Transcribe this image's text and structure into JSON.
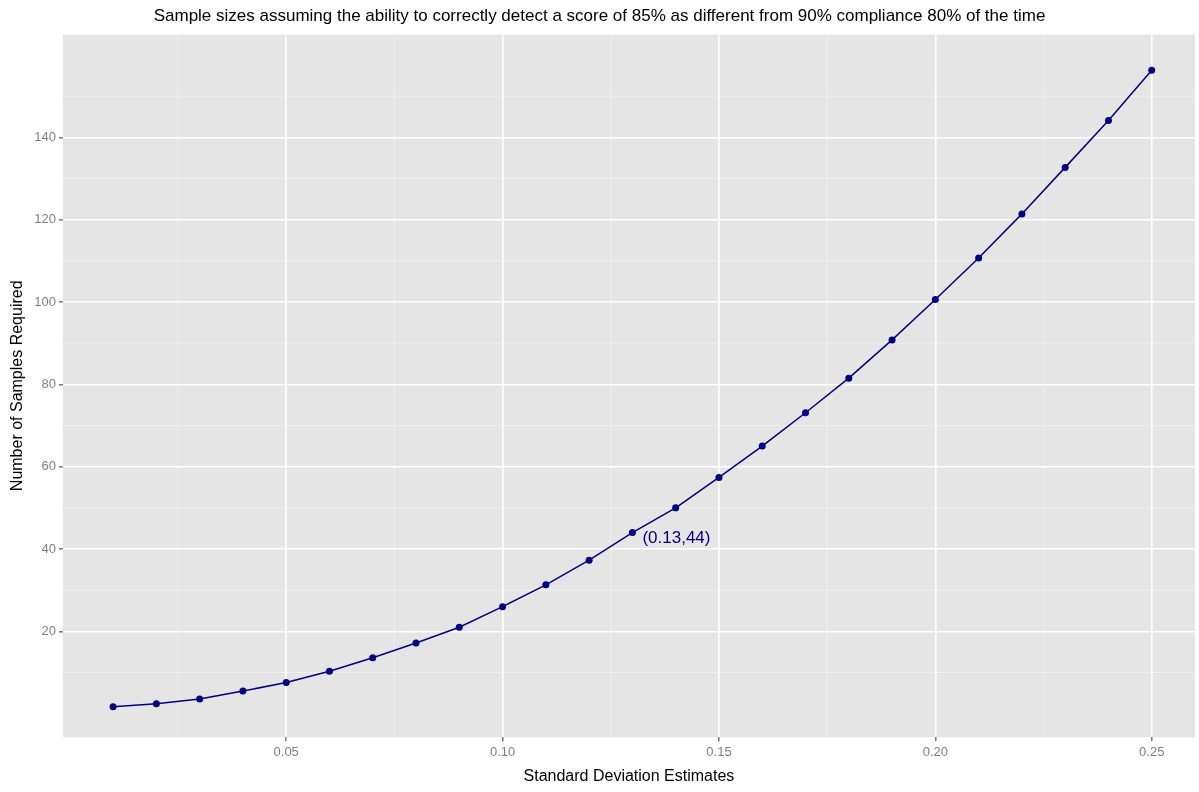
{
  "chart_data": {
    "type": "line",
    "title": "Sample sizes assuming the ability to correctly detect a score of 85% as different from 90% compliance 80% of the time",
    "xlabel": "Standard Deviation Estimates",
    "ylabel": "Number of Samples Required",
    "x": [
      0.01,
      0.02,
      0.03,
      0.04,
      0.05,
      0.06,
      0.07,
      0.08,
      0.09,
      0.1,
      0.11,
      0.12,
      0.13,
      0.14,
      0.15,
      0.16,
      0.17,
      0.18,
      0.19,
      0.2,
      0.21,
      0.22,
      0.23,
      0.24,
      0.25
    ],
    "series": [
      {
        "color": "#000080",
        "values": [
          1.7,
          2.4,
          3.6,
          5.5,
          7.6,
          10.3,
          13.6,
          17.2,
          21,
          26,
          31.3,
          37.3,
          44,
          50,
          57.4,
          65,
          73.1,
          81.5,
          90.8,
          100.6,
          110.7,
          121.4,
          132.7,
          144.1,
          156.3
        ]
      }
    ],
    "xlim": [
      -0.0016,
      0.26
    ],
    "ylim": [
      -5.7,
      165
    ],
    "xticks": [
      {
        "value": 0.05,
        "label": "0.05"
      },
      {
        "value": 0.1,
        "label": "0.10"
      },
      {
        "value": 0.15,
        "label": "0.15"
      },
      {
        "value": 0.2,
        "label": "0.20"
      },
      {
        "value": 0.25,
        "label": "0.25"
      }
    ],
    "yticks": [
      20,
      40,
      60,
      80,
      100,
      120,
      140
    ],
    "annotations": [
      {
        "text": "(0.13,44)",
        "x": 0.13,
        "y": 44
      }
    ],
    "grid": true,
    "marker": "circle",
    "line_style": "solid",
    "legend": false
  }
}
